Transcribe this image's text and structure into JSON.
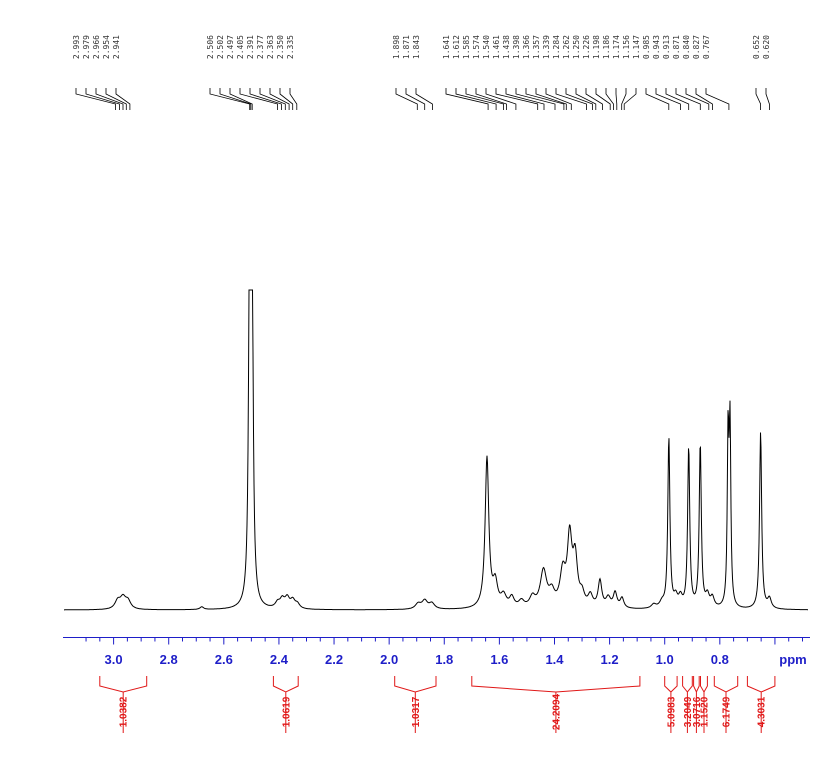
{
  "colors": {
    "spectrum": "#000000",
    "axis": "#1e1ec8",
    "integral": "#e01818",
    "peak_label": "#333333"
  },
  "chart_data": {
    "type": "line",
    "xlabel": "ppm",
    "xlim": [
      3.18,
      0.48
    ],
    "x_reversed": true,
    "grid": false,
    "legend": "none",
    "x_tick_labels": [
      "3.0",
      "2.8",
      "2.6",
      "2.4",
      "2.2",
      "2.0",
      "1.8",
      "1.6",
      "1.4",
      "1.2",
      "1.0",
      "0.8",
      "ppm"
    ],
    "x_ticks": [
      3.0,
      2.8,
      2.6,
      2.4,
      2.2,
      2.0,
      1.8,
      1.6,
      1.4,
      1.2,
      1.0,
      0.8
    ],
    "peak_labels": [
      {
        "group": 1,
        "values": [
          "2.993",
          "2.979",
          "2.966",
          "2.954",
          "2.941"
        ]
      },
      {
        "group": 2,
        "values": [
          "2.506",
          "2.502",
          "2.497",
          "2.405",
          "2.391",
          "2.377",
          "2.363",
          "2.350",
          "2.335"
        ]
      },
      {
        "group": 3,
        "values": [
          "1.898",
          "1.871",
          "1.843"
        ]
      },
      {
        "group": 4,
        "values": [
          "1.641",
          "1.612",
          "1.585",
          "1.574",
          "1.540",
          "1.461",
          "1.438",
          "1.398",
          "1.366",
          "1.357",
          "1.339",
          "1.284",
          "1.262",
          "1.250",
          "1.226",
          "1.198",
          "1.186",
          "1.174",
          "1.156",
          "1.147",
          "0.985",
          "0.943",
          "0.913",
          "0.871",
          "0.840",
          "0.827",
          "0.767"
        ]
      },
      {
        "group": 5,
        "values": [
          "0.652",
          "0.620"
        ]
      }
    ],
    "integrals": [
      {
        "from": 3.05,
        "to": 2.88,
        "value": "1.0382"
      },
      {
        "from": 2.42,
        "to": 2.33,
        "value": "1.0619"
      },
      {
        "from": 1.98,
        "to": 1.83,
        "value": "1.0317"
      },
      {
        "from": 1.7,
        "to": 1.09,
        "value": "24.2094"
      },
      {
        "from": 1.0,
        "to": 0.955,
        "value": "5.0983"
      },
      {
        "from": 0.935,
        "to": 0.9,
        "value": "3.2049"
      },
      {
        "from": 0.895,
        "to": 0.875,
        "value": "3.0716"
      },
      {
        "from": 0.87,
        "to": 0.845,
        "value": "1.1520"
      },
      {
        "from": 0.82,
        "to": 0.735,
        "value": "6.1749"
      },
      {
        "from": 0.7,
        "to": 0.6,
        "value": "4.3031"
      }
    ],
    "peaks": [
      {
        "ppm": 2.985,
        "h": 0.025,
        "w": 0.012
      },
      {
        "ppm": 2.966,
        "h": 0.032,
        "w": 0.012
      },
      {
        "ppm": 2.948,
        "h": 0.024,
        "w": 0.012
      },
      {
        "ppm": 2.68,
        "h": 0.008,
        "w": 0.008
      },
      {
        "ppm": 2.507,
        "h": 0.7,
        "w": 0.0045
      },
      {
        "ppm": 2.502,
        "h": 0.95,
        "w": 0.004
      },
      {
        "ppm": 2.497,
        "h": 0.7,
        "w": 0.0045
      },
      {
        "ppm": 2.405,
        "h": 0.016,
        "w": 0.01
      },
      {
        "ppm": 2.388,
        "h": 0.026,
        "w": 0.01
      },
      {
        "ppm": 2.37,
        "h": 0.03,
        "w": 0.01
      },
      {
        "ppm": 2.35,
        "h": 0.024,
        "w": 0.01
      },
      {
        "ppm": 2.333,
        "h": 0.014,
        "w": 0.01
      },
      {
        "ppm": 1.895,
        "h": 0.016,
        "w": 0.012
      },
      {
        "ppm": 1.871,
        "h": 0.025,
        "w": 0.012
      },
      {
        "ppm": 1.845,
        "h": 0.017,
        "w": 0.012
      },
      {
        "ppm": 1.645,
        "h": 0.45,
        "w": 0.008
      },
      {
        "ppm": 1.615,
        "h": 0.07,
        "w": 0.01
      },
      {
        "ppm": 1.585,
        "h": 0.035,
        "w": 0.012
      },
      {
        "ppm": 1.555,
        "h": 0.03,
        "w": 0.01
      },
      {
        "ppm": 1.52,
        "h": 0.02,
        "w": 0.012
      },
      {
        "ppm": 1.48,
        "h": 0.03,
        "w": 0.012
      },
      {
        "ppm": 1.44,
        "h": 0.11,
        "w": 0.014
      },
      {
        "ppm": 1.41,
        "h": 0.04,
        "w": 0.012
      },
      {
        "ppm": 1.37,
        "h": 0.1,
        "w": 0.012
      },
      {
        "ppm": 1.345,
        "h": 0.2,
        "w": 0.01
      },
      {
        "ppm": 1.325,
        "h": 0.14,
        "w": 0.01
      },
      {
        "ppm": 1.3,
        "h": 0.035,
        "w": 0.01
      },
      {
        "ppm": 1.27,
        "h": 0.035,
        "w": 0.01
      },
      {
        "ppm": 1.235,
        "h": 0.08,
        "w": 0.008
      },
      {
        "ppm": 1.205,
        "h": 0.03,
        "w": 0.01
      },
      {
        "ppm": 1.18,
        "h": 0.045,
        "w": 0.008
      },
      {
        "ppm": 1.155,
        "h": 0.03,
        "w": 0.008
      },
      {
        "ppm": 1.04,
        "h": 0.012,
        "w": 0.01
      },
      {
        "ppm": 1.01,
        "h": 0.016,
        "w": 0.01
      },
      {
        "ppm": 0.985,
        "h": 0.51,
        "w": 0.0045
      },
      {
        "ppm": 0.96,
        "h": 0.03,
        "w": 0.008
      },
      {
        "ppm": 0.943,
        "h": 0.03,
        "w": 0.008
      },
      {
        "ppm": 0.913,
        "h": 0.48,
        "w": 0.0045
      },
      {
        "ppm": 0.871,
        "h": 0.49,
        "w": 0.0045
      },
      {
        "ppm": 0.845,
        "h": 0.035,
        "w": 0.008
      },
      {
        "ppm": 0.827,
        "h": 0.03,
        "w": 0.008
      },
      {
        "ppm": 0.77,
        "h": 0.5,
        "w": 0.0035
      },
      {
        "ppm": 0.763,
        "h": 0.52,
        "w": 0.0035
      },
      {
        "ppm": 0.652,
        "h": 0.53,
        "w": 0.0045
      },
      {
        "ppm": 0.62,
        "h": 0.03,
        "w": 0.008
      }
    ]
  }
}
